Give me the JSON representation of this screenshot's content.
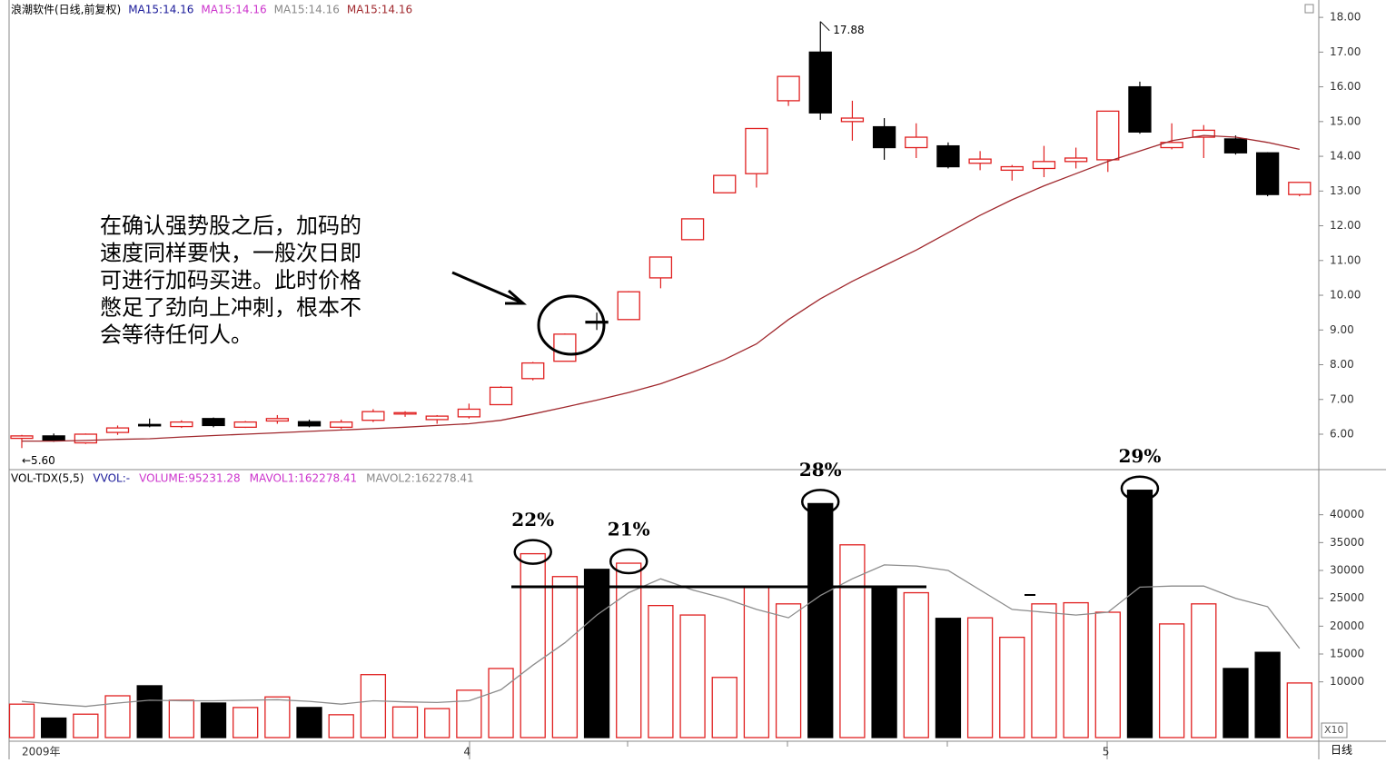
{
  "chart_data": [
    {
      "type": "candlestick",
      "title": "浪潮软件(日线,前复权)",
      "legend": [
        {
          "name": "MA15:14.16",
          "color": "#1a1a99"
        },
        {
          "name": "MA15:14.16",
          "color": "#cc33cc"
        },
        {
          "name": "MA15:14.16",
          "color": "#888888"
        },
        {
          "name": "MA15:14.16",
          "color": "#a0282d"
        }
      ],
      "categories": [
        "2009年",
        null,
        null,
        null,
        null,
        null,
        null,
        null,
        null,
        null,
        null,
        null,
        null,
        null,
        "4",
        null,
        null,
        null,
        null,
        null,
        null,
        null,
        null,
        null,
        null,
        null,
        null,
        null,
        null,
        null,
        null,
        null,
        null,
        null,
        "5",
        null,
        null,
        null,
        null,
        null,
        null
      ],
      "open": [
        5.88,
        5.95,
        5.75,
        6.05,
        6.28,
        6.22,
        6.45,
        6.2,
        6.38,
        6.36,
        6.2,
        6.4,
        6.58,
        6.42,
        6.5,
        6.85,
        7.6,
        8.1,
        9.25,
        9.3,
        10.5,
        11.6,
        12.95,
        13.5,
        15.6,
        17.0,
        15.0,
        14.85,
        14.25,
        14.3,
        13.8,
        13.6,
        13.65,
        13.85,
        13.9,
        16.0,
        14.25,
        14.55,
        14.5,
        14.1,
        12.9
      ],
      "high": [
        5.98,
        6.02,
        6.02,
        6.25,
        6.45,
        6.4,
        6.48,
        6.38,
        6.55,
        6.42,
        6.42,
        6.72,
        6.66,
        6.55,
        6.88,
        7.38,
        8.08,
        8.9,
        9.5,
        10.12,
        11.1,
        12.2,
        13.45,
        14.8,
        16.3,
        17.88,
        15.6,
        15.1,
        14.95,
        14.4,
        14.15,
        13.75,
        14.3,
        14.25,
        15.3,
        16.15,
        14.95,
        14.9,
        14.6,
        14.12,
        13.25
      ],
      "low": [
        5.6,
        5.78,
        5.72,
        5.98,
        6.2,
        6.18,
        6.2,
        6.18,
        6.3,
        6.2,
        6.15,
        6.35,
        6.5,
        6.3,
        6.45,
        6.85,
        7.55,
        8.1,
        9.0,
        9.3,
        10.2,
        11.6,
        12.95,
        13.1,
        15.45,
        15.05,
        14.45,
        13.9,
        13.95,
        13.65,
        13.6,
        13.3,
        13.4,
        13.65,
        13.55,
        14.65,
        14.2,
        13.95,
        14.05,
        12.85,
        12.85
      ],
      "close": [
        5.95,
        5.82,
        6.0,
        6.18,
        6.24,
        6.35,
        6.25,
        6.35,
        6.45,
        6.24,
        6.35,
        6.65,
        6.62,
        6.52,
        6.72,
        7.35,
        8.05,
        8.88,
        9.2,
        10.1,
        11.1,
        12.2,
        13.45,
        14.8,
        16.3,
        15.25,
        15.1,
        14.25,
        14.55,
        13.7,
        13.92,
        13.7,
        13.85,
        13.95,
        15.3,
        14.7,
        14.4,
        14.75,
        14.1,
        12.9,
        13.25
      ],
      "up_color": "#e02020",
      "down_color": "#000000",
      "ma": {
        "color": "#a0282d",
        "values": [
          5.8,
          5.8,
          5.82,
          5.85,
          5.87,
          5.92,
          5.96,
          6.0,
          6.04,
          6.08,
          6.12,
          6.16,
          6.2,
          6.25,
          6.3,
          6.4,
          6.58,
          6.78,
          6.98,
          7.2,
          7.45,
          7.78,
          8.15,
          8.6,
          9.3,
          9.9,
          10.4,
          10.85,
          11.3,
          11.8,
          12.3,
          12.75,
          13.15,
          13.5,
          13.85,
          14.15,
          14.45,
          14.6,
          14.55,
          14.4,
          14.2
        ]
      },
      "high_mark": {
        "value": 17.88,
        "label": "17.88"
      },
      "low_mark": {
        "value": 5.6,
        "label": "←5.60"
      },
      "ylim": [
        4.98,
        18.5
      ],
      "yticks": [
        {
          "value": 6,
          "label": "6.00"
        },
        {
          "value": 7,
          "label": "7.00"
        },
        {
          "value": 8,
          "label": "8.00"
        },
        {
          "value": 9,
          "label": "9.00"
        },
        {
          "value": 10,
          "label": "10.00"
        },
        {
          "value": 11,
          "label": "11.00"
        },
        {
          "value": 12,
          "label": "12.00"
        },
        {
          "value": 13,
          "label": "13.00"
        },
        {
          "value": 14,
          "label": "14.00"
        },
        {
          "value": 15,
          "label": "15.00"
        },
        {
          "value": 16,
          "label": "16.00"
        },
        {
          "value": 17,
          "label": "17.00"
        },
        {
          "value": 18,
          "label": "18.00"
        }
      ],
      "note": [
        "在确认强势股之后，加码的",
        "速度同样要快，一般次日即",
        "可进行加码买进。此时价格",
        "憋足了劲向上冲刺，根本不",
        "会等待任何人。"
      ],
      "period": "日线"
    },
    {
      "type": "bar",
      "header": [
        {
          "text": "VOL-TDX(5,5)",
          "color": "#000000"
        },
        {
          "text": "VVOL:-",
          "color": "#1a1a99"
        },
        {
          "text": "VOLUME:95231.28",
          "color": "#cc33cc"
        },
        {
          "text": "MAVOL1:162278.41",
          "color": "#cc33cc"
        },
        {
          "text": "MAVOL2:162278.41",
          "color": "#888888"
        }
      ],
      "values": [
        6000,
        3500,
        4200,
        7500,
        9300,
        6700,
        6200,
        5400,
        7300,
        5400,
        4100,
        11300,
        5500,
        5200,
        8500,
        12400,
        33000,
        28900,
        30200,
        31300,
        23700,
        22000,
        10800,
        27200,
        24000,
        42000,
        34600,
        27100,
        26000,
        21400,
        21500,
        18000,
        24000,
        24200,
        22500,
        44400,
        20400,
        24000,
        12400,
        15300,
        9800
      ],
      "pct_labels": [
        null,
        null,
        null,
        null,
        null,
        null,
        null,
        null,
        null,
        null,
        null,
        null,
        null,
        null,
        null,
        null,
        "22%",
        null,
        null,
        "21%",
        null,
        null,
        null,
        null,
        null,
        "28%",
        null,
        null,
        null,
        null,
        null,
        null,
        null,
        null,
        null,
        "29%",
        null,
        null,
        null,
        null,
        null
      ],
      "mavol": {
        "color": "#8c8c8c",
        "values": [
          6500,
          6000,
          5600,
          6200,
          6700,
          6600,
          6600,
          6700,
          6800,
          6500,
          6000,
          6600,
          6400,
          6300,
          6600,
          8600,
          13000,
          17000,
          22000,
          26000,
          28500,
          26500,
          25000,
          23000,
          21500,
          25500,
          28500,
          31000,
          30800,
          30000,
          26500,
          23000,
          22500,
          22000,
          22500,
          27000,
          27200,
          27200,
          25000,
          23500,
          16000
        ]
      },
      "ylim": [
        0,
        48100
      ],
      "yticks": [
        10000,
        15000,
        20000,
        25000,
        30000,
        35000,
        40000
      ],
      "scale_label": "X10"
    }
  ]
}
